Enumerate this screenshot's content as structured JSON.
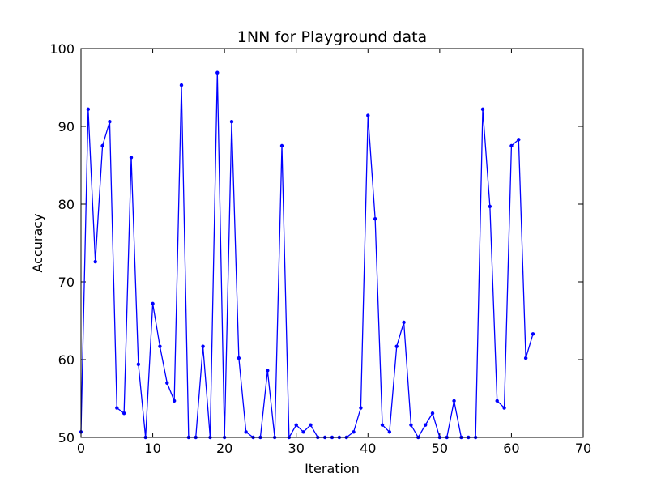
{
  "chart_data": {
    "type": "line",
    "title": "1NN for Playground data",
    "xlabel": "Iteration",
    "ylabel": "Accuracy",
    "xlim": [
      0,
      70
    ],
    "ylim": [
      50,
      100
    ],
    "xticks": [
      0,
      10,
      20,
      30,
      40,
      50,
      60,
      70
    ],
    "yticks": [
      50,
      60,
      70,
      80,
      90,
      100
    ],
    "grid": false,
    "series": [
      {
        "color": "#0000ff",
        "marker": "point",
        "x": [
          0,
          1,
          2,
          3,
          4,
          5,
          6,
          7,
          8,
          9,
          10,
          11,
          12,
          13,
          14,
          15,
          16,
          17,
          18,
          19,
          20,
          21,
          22,
          23,
          24,
          25,
          26,
          27,
          28,
          29,
          30,
          31,
          32,
          33,
          34,
          35,
          36,
          37,
          38,
          39,
          40,
          41,
          42,
          43,
          44,
          45,
          46,
          47,
          48,
          49,
          50,
          51,
          52,
          53,
          54,
          55,
          56,
          57,
          58,
          59,
          60,
          61,
          62,
          63
        ],
        "values": [
          50.7,
          92.2,
          72.6,
          87.5,
          90.6,
          53.8,
          53.1,
          86.0,
          59.4,
          50.0,
          67.2,
          61.7,
          57.0,
          54.7,
          95.3,
          50.0,
          50.0,
          61.7,
          50.0,
          96.9,
          50.0,
          90.6,
          60.2,
          50.7,
          50.0,
          50.0,
          58.6,
          50.0,
          87.5,
          50.0,
          51.6,
          50.7,
          51.6,
          50.0,
          50.0,
          50.0,
          50.0,
          50.0,
          50.7,
          53.8,
          91.4,
          78.1,
          51.6,
          50.7,
          61.7,
          64.8,
          51.6,
          50.0,
          51.6,
          53.1,
          50.0,
          50.0,
          54.7,
          50.0,
          50.0,
          50.0,
          92.2,
          79.7,
          54.7,
          53.8,
          87.5,
          88.3,
          60.2,
          63.3
        ]
      }
    ]
  }
}
